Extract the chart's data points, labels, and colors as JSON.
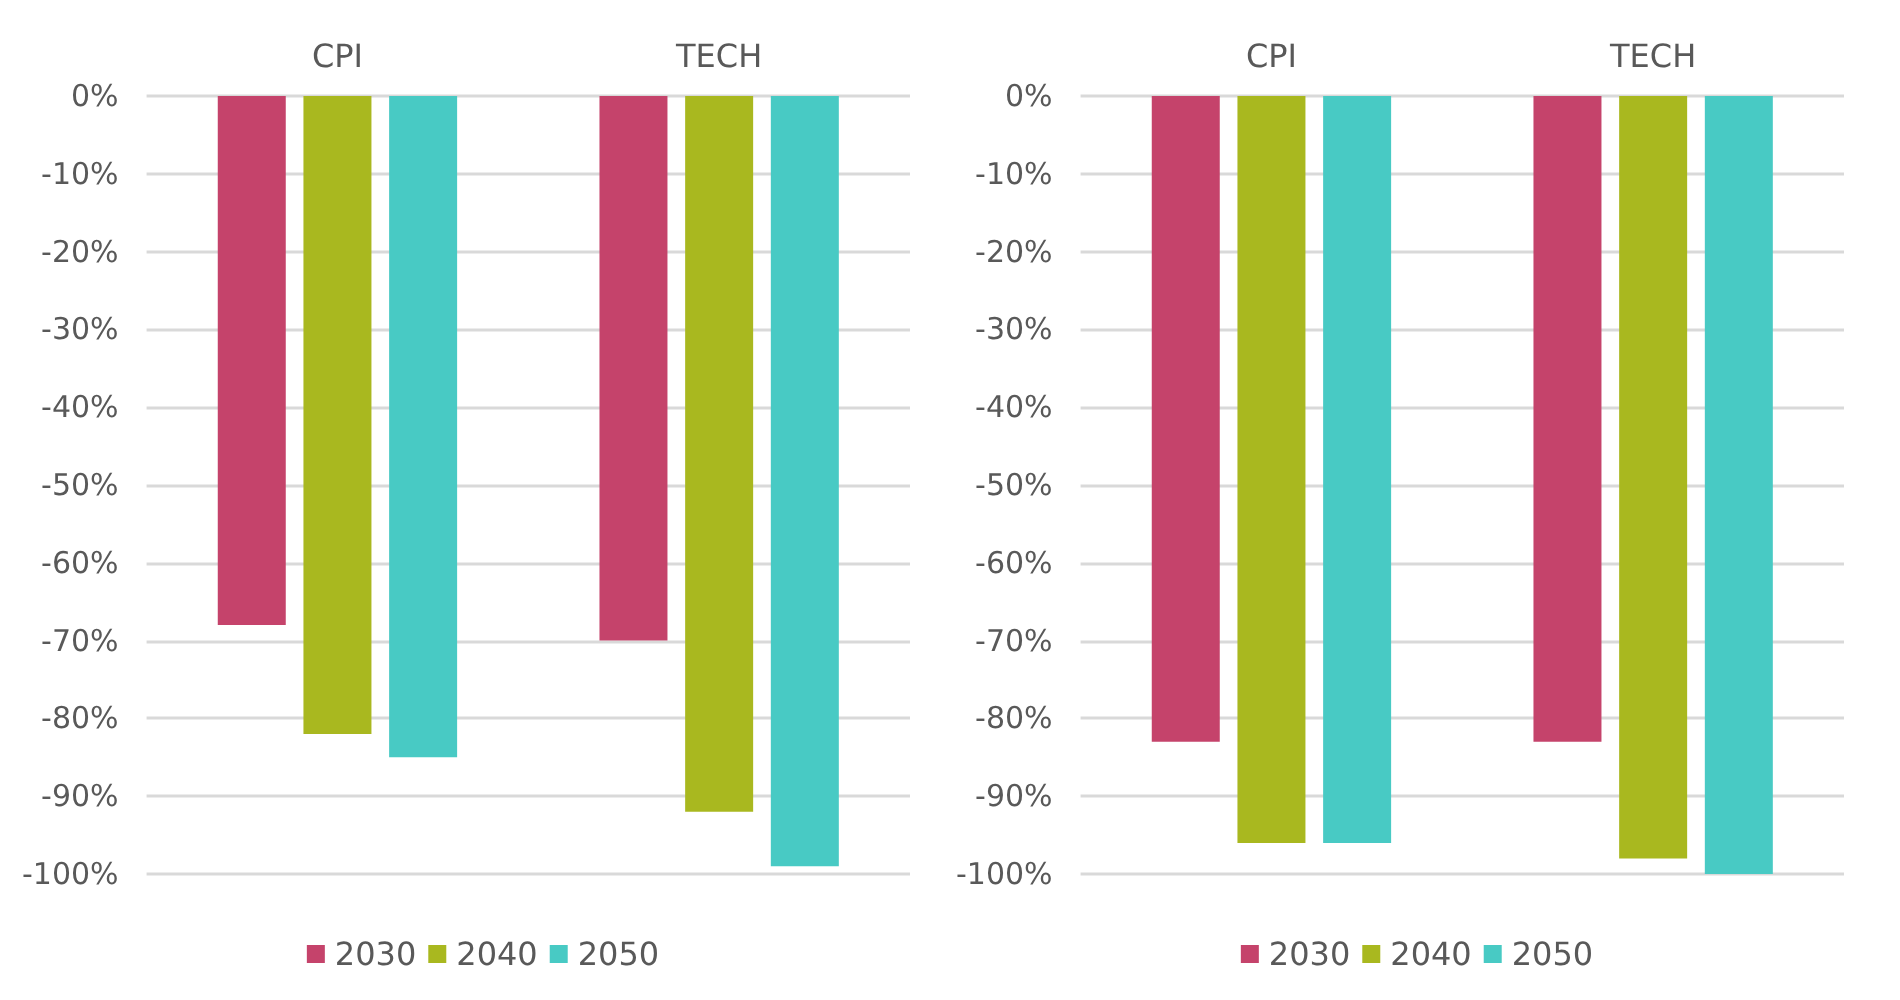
{
  "chart_data": [
    {
      "type": "bar",
      "categories": [
        "CPI",
        "TECH"
      ],
      "series": [
        {
          "name": "2030",
          "color": "#c5436b",
          "values": [
            -68,
            -70
          ]
        },
        {
          "name": "2040",
          "color": "#a9b81f",
          "values": [
            -82,
            -92
          ]
        },
        {
          "name": "2050",
          "color": "#48cac4",
          "values": [
            -85,
            -99
          ]
        }
      ],
      "ylim": [
        -100,
        0
      ],
      "yticks": [
        {
          "value": 0,
          "label": "0%"
        },
        {
          "value": -10,
          "label": "-10%"
        },
        {
          "value": -20,
          "label": "-20%"
        },
        {
          "value": -30,
          "label": "-30%"
        },
        {
          "value": -40,
          "label": "-40%"
        },
        {
          "value": -50,
          "label": "-50%"
        },
        {
          "value": -60,
          "label": "-60%"
        },
        {
          "value": -70,
          "label": "-70%"
        },
        {
          "value": -80,
          "label": "-80%"
        },
        {
          "value": -90,
          "label": "-90%"
        },
        {
          "value": -100,
          "label": "-100%"
        }
      ],
      "grid": "y",
      "legend": "bottom"
    },
    {
      "type": "bar",
      "categories": [
        "CPI",
        "TECH"
      ],
      "series": [
        {
          "name": "2030",
          "color": "#c5436b",
          "values": [
            -83,
            -83
          ]
        },
        {
          "name": "2040",
          "color": "#a9b81f",
          "values": [
            -96,
            -98
          ]
        },
        {
          "name": "2050",
          "color": "#48cac4",
          "values": [
            -96,
            -100
          ]
        }
      ],
      "ylim": [
        -100,
        0
      ],
      "yticks": [
        {
          "value": 0,
          "label": "0%"
        },
        {
          "value": -10,
          "label": "-10%"
        },
        {
          "value": -20,
          "label": "-20%"
        },
        {
          "value": -30,
          "label": "-30%"
        },
        {
          "value": -40,
          "label": "-40%"
        },
        {
          "value": -50,
          "label": "-50%"
        },
        {
          "value": -60,
          "label": "-60%"
        },
        {
          "value": -70,
          "label": "-70%"
        },
        {
          "value": -80,
          "label": "-80%"
        },
        {
          "value": -90,
          "label": "-90%"
        },
        {
          "value": -100,
          "label": "-100%"
        }
      ],
      "grid": "y",
      "legend": "bottom"
    }
  ]
}
